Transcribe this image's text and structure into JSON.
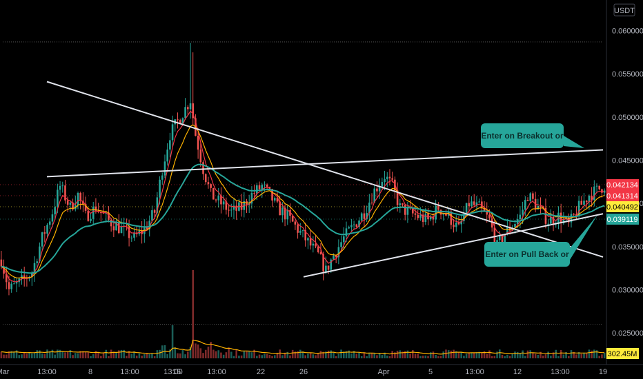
{
  "chart_data": {
    "type": "candlestick",
    "currency": "USDT",
    "ylim": [
      0.0235,
      0.0618
    ],
    "grid": false,
    "y_ticks": [
      "0.060000",
      "0.055000",
      "0.050000",
      "0.045000",
      "0.040000",
      "0.035000",
      "0.030000",
      "0.025000"
    ],
    "x_ticks": [
      "Mar",
      "13:00",
      "8",
      "13:00",
      "13:00",
      "15",
      "13:00",
      "22",
      "26",
      "Apr",
      "5",
      "13:00",
      "12",
      "13:00",
      "19"
    ],
    "price_labels": [
      {
        "text": "0.042134",
        "value": 0.042134,
        "color": "#f23645"
      },
      {
        "text": "0.041314",
        "value": 0.041314,
        "color": "#f23645"
      },
      {
        "text": "0.040492",
        "value": 0.040492,
        "color": "#ffeb3b"
      },
      {
        "text": "0.039119",
        "value": 0.039119,
        "color": "#26a69a"
      }
    ],
    "volume_label": "302.45M",
    "price_anchors": [
      [
        0,
        0.0335
      ],
      [
        3,
        0.03
      ],
      [
        8,
        0.031
      ],
      [
        12,
        0.032
      ],
      [
        16,
        0.036
      ],
      [
        20,
        0.039
      ],
      [
        23,
        0.042
      ],
      [
        27,
        0.0395
      ],
      [
        30,
        0.041
      ],
      [
        33,
        0.0385
      ],
      [
        37,
        0.0395
      ],
      [
        42,
        0.038
      ],
      [
        47,
        0.037
      ],
      [
        52,
        0.036
      ],
      [
        56,
        0.037
      ],
      [
        60,
        0.039
      ],
      [
        63,
        0.044
      ],
      [
        66,
        0.048
      ],
      [
        70,
        0.05
      ],
      [
        74,
        0.052
      ],
      [
        76,
        0.048
      ],
      [
        79,
        0.044
      ],
      [
        82,
        0.041
      ],
      [
        86,
        0.04
      ],
      [
        90,
        0.039
      ],
      [
        94,
        0.0395
      ],
      [
        98,
        0.041
      ],
      [
        102,
        0.042
      ],
      [
        105,
        0.041
      ],
      [
        108,
        0.0395
      ],
      [
        112,
        0.0385
      ],
      [
        116,
        0.037
      ],
      [
        120,
        0.0355
      ],
      [
        124,
        0.034
      ],
      [
        127,
        0.0322
      ],
      [
        130,
        0.034
      ],
      [
        134,
        0.036
      ],
      [
        138,
        0.0375
      ],
      [
        142,
        0.039
      ],
      [
        146,
        0.0415
      ],
      [
        150,
        0.0432
      ],
      [
        153,
        0.042
      ],
      [
        156,
        0.0395
      ],
      [
        159,
        0.039
      ],
      [
        163,
        0.0385
      ],
      [
        167,
        0.038
      ],
      [
        171,
        0.0395
      ],
      [
        175,
        0.0385
      ],
      [
        179,
        0.037
      ],
      [
        183,
        0.04
      ],
      [
        187,
        0.0395
      ],
      [
        191,
        0.038
      ],
      [
        194,
        0.035
      ],
      [
        197,
        0.0365
      ],
      [
        200,
        0.0375
      ],
      [
        203,
        0.0385
      ],
      [
        206,
        0.041
      ],
      [
        210,
        0.0395
      ],
      [
        214,
        0.038
      ],
      [
        218,
        0.0385
      ],
      [
        222,
        0.0375
      ],
      [
        226,
        0.0395
      ],
      [
        230,
        0.041
      ],
      [
        233,
        0.0415
      ],
      [
        236,
        0.0421
      ]
    ],
    "lines": [
      {
        "name": "resistance",
        "from": [
          "13:00",
          0.0431
        ],
        "to": [
          "19",
          0.0462
        ]
      },
      {
        "name": "falling-trendline",
        "from": [
          "13:00",
          0.0541
        ],
        "to": [
          "19",
          0.0338
        ]
      },
      {
        "name": "rising-support",
        "from": [
          "26",
          0.0315
        ],
        "to": [
          "19",
          0.0388
        ]
      },
      {
        "name": "horizontal-top",
        "from": [
          "Mar",
          0.0587
        ],
        "to": [
          "19",
          0.0587
        ]
      },
      {
        "name": "horizontal-bottom",
        "from": [
          "Mar",
          0.026
        ],
        "to": [
          "19",
          0.026
        ]
      }
    ],
    "annotations": [
      {
        "text": "Enter on Breakout or"
      },
      {
        "text": "Enter on Pull Back or"
      }
    ],
    "colors": {
      "up": "#26a69a",
      "down": "#ef5350",
      "ema_fast": "#f23645",
      "ema_mid": "#ffb300",
      "ema_slow": "#26a69a",
      "line": "#e0e3eb",
      "box": "#26a69a",
      "volume_ma": "#ffb300"
    }
  }
}
